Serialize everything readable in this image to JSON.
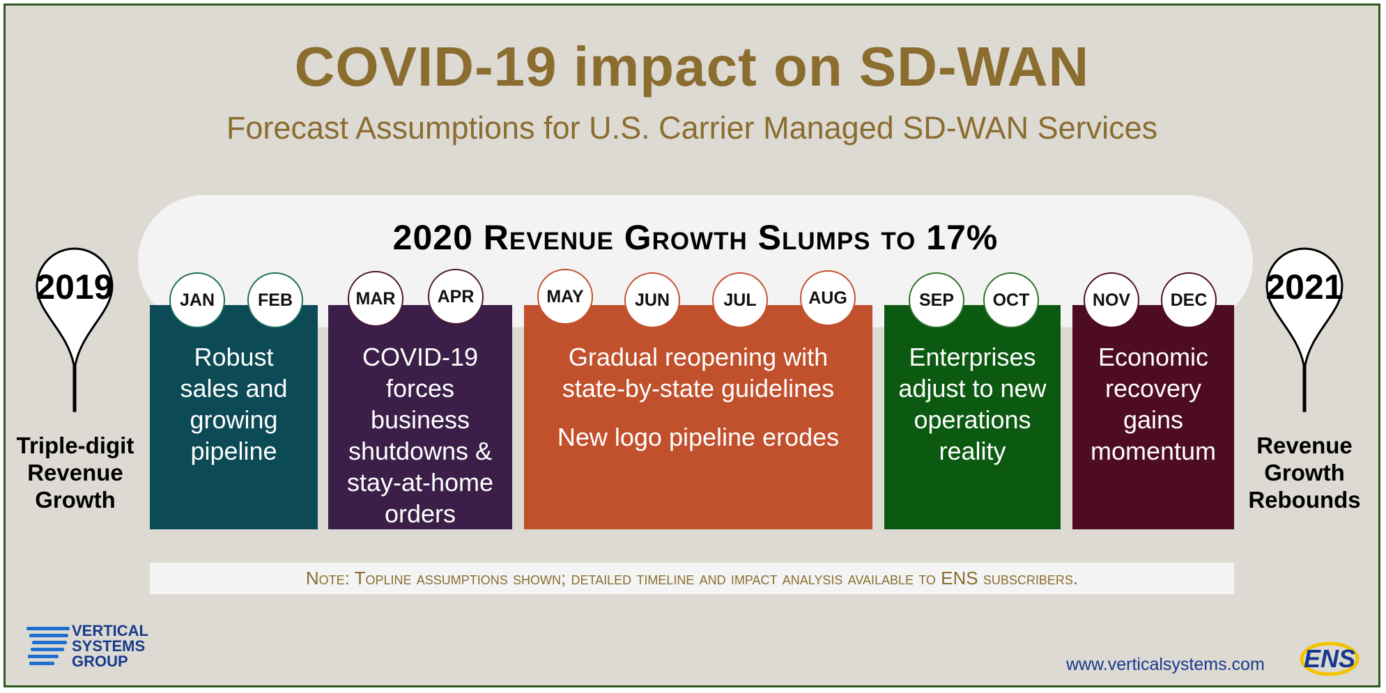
{
  "header": {
    "title": "COVID-19 impact on SD-WAN",
    "subtitle": "Forecast Assumptions for U.S. Carrier Managed SD-WAN Services"
  },
  "banner": "2020 Revenue Growth Slumps to 17%",
  "pins": {
    "left": {
      "year": "2019",
      "label_lines": [
        "Triple-digit",
        "Revenue",
        "Growth"
      ]
    },
    "right": {
      "year": "2021",
      "label_lines": [
        "Revenue",
        "Growth",
        "Rebounds"
      ]
    }
  },
  "months": [
    "JAN",
    "FEB",
    "MAR",
    "APR",
    "MAY",
    "JUN",
    "JUL",
    "AUG",
    "SEP",
    "OCT",
    "NOV",
    "DEC"
  ],
  "phases": [
    {
      "text_lines": [
        "Robust",
        "sales and",
        "growing",
        "pipeline"
      ],
      "color": "#0c4a56"
    },
    {
      "text_lines": [
        "COVID-19",
        "forces",
        "business",
        "shutdowns &",
        "stay-at-home",
        "orders"
      ],
      "color": "#3b1f48"
    },
    {
      "text_lines": [
        "Gradual reopening with",
        "state-by-state guidelines"
      ],
      "text_extra": "New logo pipeline erodes",
      "color": "#c1502c"
    },
    {
      "text_lines": [
        "Enterprises",
        "adjust to new",
        "operations",
        "reality"
      ],
      "color": "#0c5a12"
    },
    {
      "text_lines": [
        "Economic",
        "recovery",
        "gains",
        "momentum"
      ],
      "color": "#4e0b24"
    }
  ],
  "note": "Note: Topline assumptions shown; detailed timeline and impact analysis available to ENS subscribers.",
  "footer": {
    "logo_lines": [
      "VERTICAL",
      "SYSTEMS",
      "GROUP"
    ],
    "url": "www.verticalsystems.com",
    "ens_logo": "ENS"
  },
  "colors": {
    "title": "#8a6d2f",
    "background": "#ddd9d3",
    "border": "#2d5a1e"
  }
}
